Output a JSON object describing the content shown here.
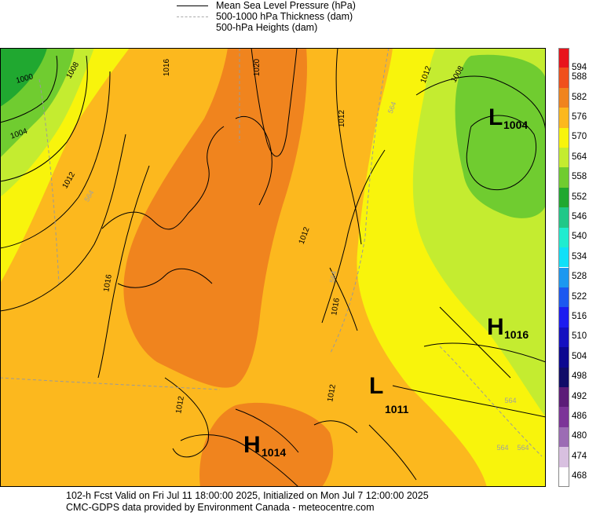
{
  "legend": {
    "items": [
      {
        "label": "Mean Sea Level Pressure (hPa)",
        "style": "solid"
      },
      {
        "label": "500-1000 hPa Thickness (dam)",
        "style": "dashed"
      },
      {
        "label": "500-hPa Heights (dam)",
        "style": "none"
      }
    ]
  },
  "colors": {
    "c594": "#e8141c",
    "c588": "#f0501c",
    "c582": "#f0841e",
    "c576": "#fcb81e",
    "c570": "#f8f40c",
    "c564": "#c4ec30",
    "c558": "#70cc30",
    "c552": "#20a830",
    "c546": "#20c888",
    "c540": "#20ecd0",
    "c534": "#10e0f8",
    "c528": "#1c98f0",
    "c522": "#1c58f0",
    "c516": "#1c1cf0",
    "c510": "#1410c0",
    "c504": "#0c0890",
    "c498": "#100c68",
    "c492": "#5c1c78",
    "c486": "#7c3498",
    "c480": "#9c6cb4",
    "c474": "#d8c0e0",
    "c468": "#ffffff"
  },
  "colorbar": {
    "labels": [
      "594",
      "588",
      "582",
      "576",
      "570",
      "564",
      "558",
      "552",
      "546",
      "540",
      "534",
      "528",
      "522",
      "516",
      "510",
      "504",
      "498",
      "492",
      "486",
      "480",
      "474",
      "468"
    ]
  },
  "map": {
    "centers": [
      {
        "letter": "L",
        "value": "1004"
      },
      {
        "letter": "H",
        "value": "1016"
      },
      {
        "letter": "L",
        "value": "1011"
      },
      {
        "letter": "H",
        "value": "1014"
      }
    ],
    "isobar_labels": [
      "1000",
      "1004",
      "1008",
      "1012",
      "1016",
      "1020",
      "1012",
      "1012",
      "1008",
      "1016",
      "1012",
      "1012",
      "1016",
      "1012"
    ],
    "thickness_labels": [
      "564",
      "564",
      "564",
      "564",
      "564",
      "564"
    ]
  },
  "footer": {
    "line1": "102-h Fcst Valid on Fri Jul 11 18:00:00 2025, Initialized on Mon Jul  7 12:00:00 2025",
    "line2": "CMC-GDPS data provided by Environment Canada - meteocentre.com"
  }
}
